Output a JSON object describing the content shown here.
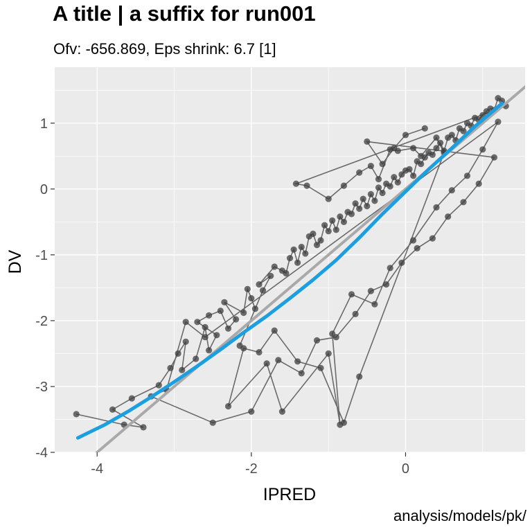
{
  "title": "A title | a suffix for run001",
  "subtitle": "Ofv: -656.869, Eps shrink: 6.7 [1]",
  "caption": "analysis/models/pk/",
  "chart_data": {
    "type": "scatter",
    "title": "A title | a suffix for run001",
    "subtitle": "Ofv: -656.869, Eps shrink: 6.7 [1]",
    "xlabel": "IPRED",
    "ylabel": "DV",
    "xlim": [
      -4.55,
      1.55
    ],
    "ylim": [
      -4.0,
      1.85
    ],
    "x_ticks": [
      -4,
      -2,
      0
    ],
    "y_ticks": [
      -4,
      -3,
      -2,
      -1,
      0,
      1
    ],
    "grid": true,
    "legend": "none",
    "colors": {
      "panel": "#ebebeb",
      "grid": "#ffffff",
      "points": "#3f3f3f",
      "smooth": "#1b9fe0",
      "identity": "#a9a9a9"
    },
    "identity_line": {
      "intercept": 0,
      "slope": 1
    },
    "smooth": {
      "x": [
        -4.25,
        -3.9,
        -3.6,
        -3.3,
        -3.0,
        -2.7,
        -2.4,
        -2.1,
        -1.8,
        -1.5,
        -1.2,
        -0.9,
        -0.6,
        -0.3,
        0.0,
        0.3,
        0.6,
        0.9,
        1.25
      ],
      "y": [
        -3.78,
        -3.58,
        -3.38,
        -3.16,
        -2.93,
        -2.69,
        -2.44,
        -2.18,
        -1.93,
        -1.66,
        -1.38,
        -1.08,
        -0.74,
        -0.38,
        -0.04,
        0.3,
        0.62,
        0.95,
        1.3
      ]
    },
    "series": [
      {
        "x": [
          -4.27,
          -3.65,
          -3.4,
          -3.8,
          -3.55,
          -3.2,
          -3.05,
          -2.95,
          -2.85,
          -2.9,
          -2.72,
          -2.6,
          -2.55,
          -2.45,
          -2.7,
          -2.55,
          -2.4,
          -2.3,
          -2.2,
          -2.35,
          -2.1,
          -2.05,
          -2.0,
          -1.95,
          -2.15,
          -1.85,
          -1.75,
          -1.9,
          -1.7,
          -1.6,
          -1.55,
          -1.5,
          -1.45,
          -1.4,
          -1.35,
          -1.3,
          -1.25,
          -1.2,
          -1.15,
          -1.1,
          -1.05,
          -1.0,
          -0.95,
          -0.9,
          -0.85,
          -0.8,
          -0.75,
          -0.7,
          -0.65,
          -0.6,
          -0.55,
          -0.5,
          -0.45,
          -0.4,
          -0.35,
          -0.3,
          -0.25,
          -0.2,
          -0.15,
          -0.1,
          -0.05,
          0.0,
          0.05,
          0.1,
          0.15,
          0.2,
          0.25,
          0.3,
          0.35,
          0.4,
          0.45,
          0.5,
          0.55,
          0.6,
          0.65,
          0.7,
          0.75,
          0.8,
          0.85,
          0.9,
          0.95,
          1.0,
          1.05,
          1.1,
          1.15,
          1.2,
          1.25,
          1.3,
          -1.42,
          -1.28,
          -1.0,
          -0.8,
          -0.6,
          -0.45,
          -0.35,
          -0.2,
          -0.1,
          0.1,
          0.2,
          0.4,
          0.5,
          -0.6,
          -0.8,
          -1.1,
          -1.4,
          -1.7,
          -1.9,
          -2.1,
          -2.3,
          -1.8,
          -1.6,
          -1.0,
          -0.85,
          -0.95,
          -0.7,
          -0.4,
          -0.2,
          0.1,
          0.4,
          0.6,
          0.8,
          1.0,
          1.2,
          -2.6,
          -2.85,
          -3.1,
          -3.3,
          -2.5,
          -2.0,
          -1.65,
          -1.35,
          -1.15,
          -0.9,
          -0.65,
          -0.45,
          -0.25,
          -0.05,
          0.15,
          0.35,
          0.55,
          0.75,
          0.95,
          1.15,
          -0.5,
          -0.3,
          -0.15,
          0.0,
          0.25
        ],
        "y": [
          -3.42,
          -3.58,
          -3.62,
          -3.35,
          -3.18,
          -2.98,
          -2.72,
          -2.5,
          -2.32,
          -2.75,
          -2.58,
          -2.1,
          -2.45,
          -2.22,
          -2.02,
          -1.92,
          -1.85,
          -2.12,
          -1.98,
          -1.72,
          -1.88,
          -1.52,
          -1.66,
          -1.82,
          -2.38,
          -1.54,
          -1.32,
          -1.45,
          -1.18,
          -1.24,
          -1.28,
          -1.05,
          -0.92,
          -1.12,
          -0.88,
          -0.98,
          -0.72,
          -0.68,
          -0.85,
          -0.78,
          -0.55,
          -0.64,
          -0.48,
          -0.62,
          -0.42,
          -0.5,
          -0.35,
          -0.38,
          -0.22,
          -0.3,
          -0.15,
          -0.26,
          -0.08,
          -0.18,
          0.02,
          -0.06,
          0.08,
          0.04,
          0.18,
          0.1,
          0.22,
          0.28,
          0.3,
          0.2,
          0.42,
          0.38,
          0.48,
          0.55,
          0.52,
          0.62,
          0.7,
          0.58,
          0.78,
          0.82,
          0.74,
          0.92,
          0.88,
          1.0,
          0.96,
          1.08,
          1.05,
          1.12,
          1.18,
          1.22,
          1.2,
          1.38,
          1.34,
          1.26,
          0.08,
          0.05,
          -0.15,
          0.05,
          0.25,
          0.35,
          0.15,
          0.6,
          0.58,
          0.62,
          0.5,
          0.78,
          0.55,
          -2.85,
          -3.55,
          -2.72,
          -2.62,
          -2.15,
          -2.48,
          -2.42,
          -3.3,
          -2.65,
          -3.38,
          -2.5,
          -3.58,
          -2.2,
          -1.6,
          -1.75,
          -1.2,
          -0.78,
          -0.28,
          -0.02,
          0.2,
          0.6,
          1.02,
          -2.25,
          -2.02,
          -3.05,
          -3.15,
          -3.55,
          -3.38,
          -2.6,
          -2.8,
          -2.3,
          -2.25,
          -1.9,
          -1.55,
          -1.45,
          -1.12,
          -0.9,
          -0.75,
          -0.42,
          -0.2,
          0.08,
          0.48,
          0.72,
          0.38,
          0.62,
          0.82,
          0.92
        ]
      }
    ]
  }
}
